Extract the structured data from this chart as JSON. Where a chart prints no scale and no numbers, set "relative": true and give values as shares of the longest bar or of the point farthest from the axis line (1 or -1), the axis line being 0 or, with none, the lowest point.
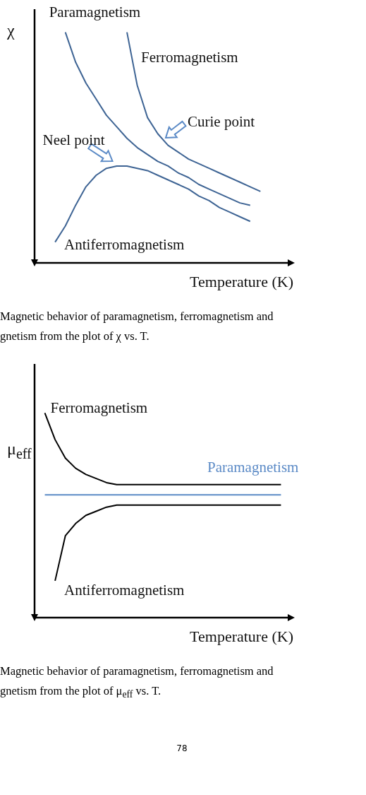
{
  "chart_data": [
    {
      "type": "line",
      "relative": true,
      "ylabel": "χ",
      "xlabel": "Temperature (K)",
      "categories": [
        null,
        null,
        null,
        null,
        null,
        null,
        null,
        null,
        null,
        null,
        null,
        null,
        null,
        null,
        null,
        null,
        null,
        null,
        null,
        null,
        null,
        null,
        null,
        null,
        null,
        null
      ],
      "grid": false,
      "legend": false,
      "marker": "none",
      "line_style": "solid",
      "series": [
        {
          "name": "Paramagnetism",
          "color": "#3e6494",
          "values": [
            null,
            null,
            null,
            1,
            0.87,
            0.78,
            0.71,
            0.64,
            0.59,
            0.54,
            0.5,
            0.47,
            0.44,
            0.42,
            0.39,
            0.37,
            0.34,
            0.32,
            0.3,
            0.28,
            0.26,
            0.25,
            null,
            null,
            null,
            null
          ]
        },
        {
          "name": "Ferromagnetism",
          "color": "#3e6494",
          "values": [
            null,
            null,
            null,
            null,
            null,
            null,
            null,
            null,
            null,
            1,
            0.77,
            0.63,
            0.56,
            0.51,
            0.48,
            0.45,
            0.43,
            0.41,
            0.39,
            0.37,
            0.35,
            0.33,
            0.31,
            null,
            null,
            null
          ]
        },
        {
          "name": "Antiferromagnetism",
          "color": "#3e6494",
          "values": [
            null,
            null,
            0.09,
            0.16,
            0.25,
            0.33,
            0.38,
            0.41,
            0.42,
            0.42,
            0.41,
            0.4,
            0.38,
            0.36,
            0.34,
            0.32,
            0.29,
            0.27,
            0.24,
            0.22,
            0.2,
            0.18,
            null,
            null,
            null,
            null
          ]
        }
      ],
      "annotations": [
        "Curie point",
        "Neel point",
        "Magnetic behavior of paramagnetism, ferromagnetism and",
        "gnetism from the plot of χ vs. T."
      ]
    },
    {
      "type": "line",
      "relative": true,
      "ylabel": "μ$_{eff}$",
      "xlabel": "Temperature (K)",
      "categories": [
        null,
        null,
        null,
        null,
        null,
        null,
        null,
        null,
        null,
        null,
        null,
        null,
        null,
        null,
        null,
        null,
        null,
        null,
        null,
        null,
        null,
        null,
        null,
        null,
        null,
        null
      ],
      "grid": false,
      "legend": false,
      "marker": "none",
      "line_style": "solid",
      "series": [
        {
          "name": "Ferromagnetism",
          "color": "#000000",
          "values": [
            null,
            1,
            0.87,
            0.78,
            0.73,
            0.7,
            0.68,
            0.66,
            0.65,
            0.65,
            0.65,
            0.65,
            0.65,
            0.65,
            0.65,
            0.65,
            0.65,
            0.65,
            0.65,
            0.65,
            0.65,
            0.65,
            0.65,
            0.65,
            0.65,
            null
          ]
        },
        {
          "name": "Paramagnetism",
          "color": "#5b8ac6",
          "values": [
            null,
            0.6,
            0.6,
            0.6,
            0.6,
            0.6,
            0.6,
            0.6,
            0.6,
            0.6,
            0.6,
            0.6,
            0.6,
            0.6,
            0.6,
            0.6,
            0.6,
            0.6,
            0.6,
            0.6,
            0.6,
            0.6,
            0.6,
            0.6,
            0.6,
            null
          ]
        },
        {
          "name": "Antiferromagnetism",
          "color": "#000000",
          "values": [
            null,
            null,
            0.18,
            0.4,
            0.46,
            0.5,
            0.52,
            0.54,
            0.55,
            0.55,
            0.55,
            0.55,
            0.55,
            0.55,
            0.55,
            0.55,
            0.55,
            0.55,
            0.55,
            0.55,
            0.55,
            0.55,
            0.55,
            0.55,
            0.55,
            null
          ]
        }
      ],
      "annotations": [
        "Magnetic behavior of paramagnetism, ferromagnetism and",
        "gnetism from the plot of μ$_{eff}$ vs. T.",
        "78"
      ]
    }
  ]
}
